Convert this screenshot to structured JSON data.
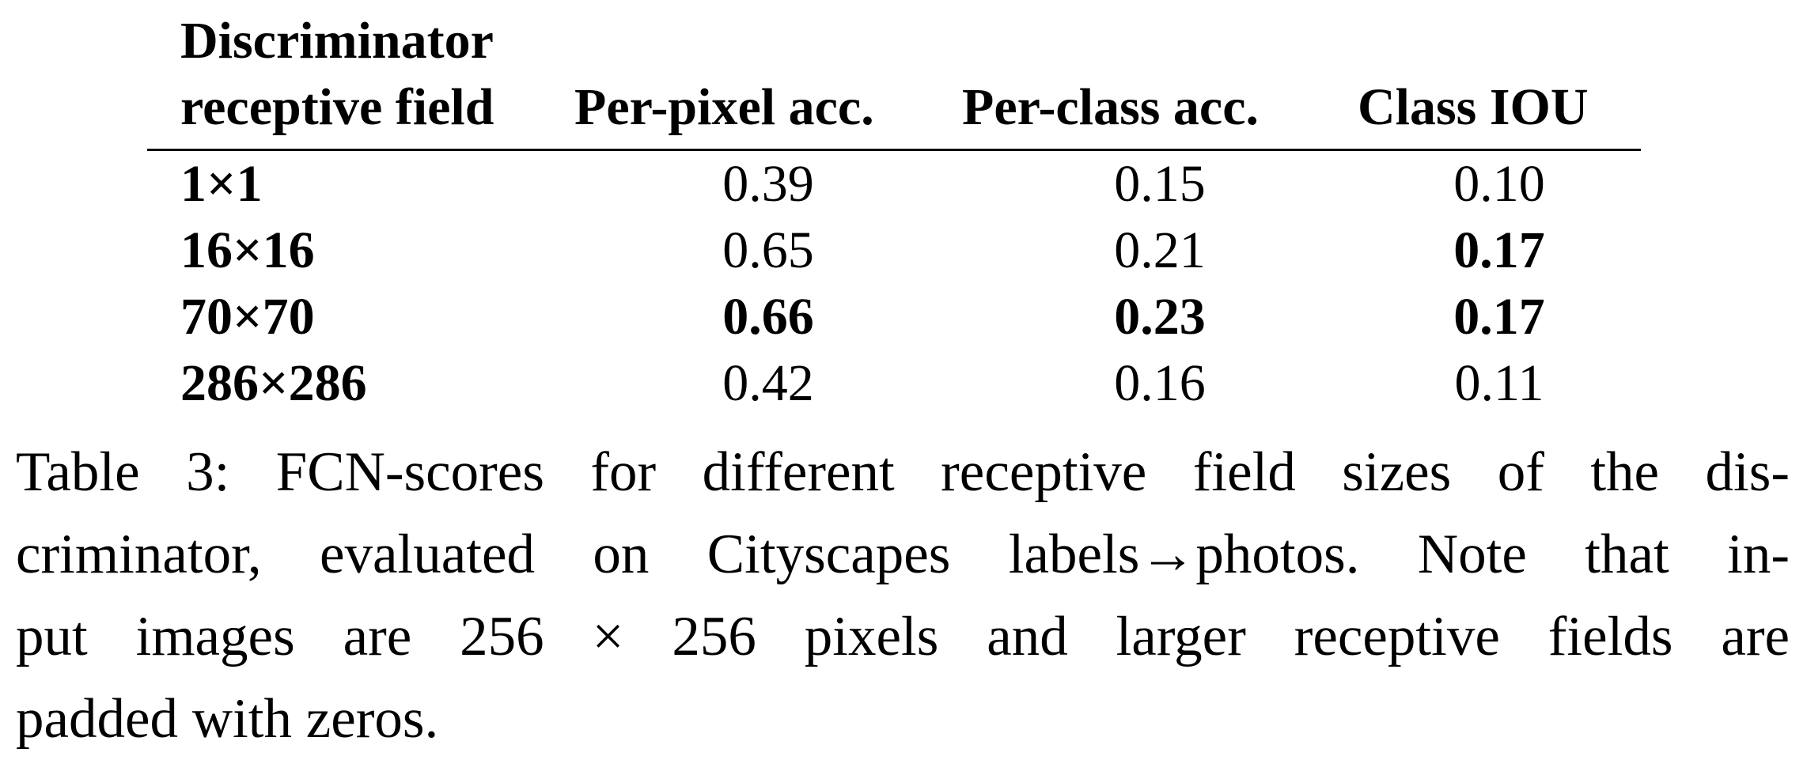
{
  "table": {
    "headers": {
      "col0_line1": "Discriminator",
      "col0_line2": "receptive field",
      "col1": "Per-pixel acc.",
      "col2": "Per-class acc.",
      "col3": "Class IOU"
    },
    "rows": [
      {
        "label": "1×1",
        "per_pixel": "0.39",
        "per_class": "0.15",
        "class_iou": "0.10"
      },
      {
        "label": "16×16",
        "per_pixel": "0.65",
        "per_class": "0.21",
        "class_iou": "0.17"
      },
      {
        "label": "70×70",
        "per_pixel": "0.66",
        "per_class": "0.23",
        "class_iou": "0.17"
      },
      {
        "label": "286×286",
        "per_pixel": "0.42",
        "per_class": "0.16",
        "class_iou": "0.11"
      }
    ]
  },
  "caption": {
    "line1": "Table 3: FCN-scores for different receptive field sizes of the dis-",
    "line2": "criminator, evaluated on Cityscapes labels→photos. Note that in-",
    "line3": "put images are 256 × 256 pixels and larger receptive fields are",
    "line4": "padded with zeros."
  }
}
